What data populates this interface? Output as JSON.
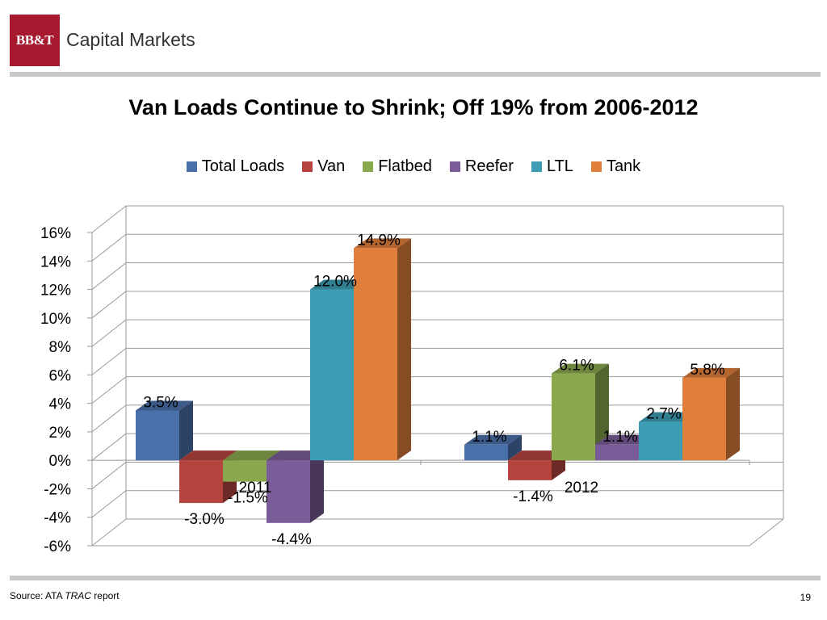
{
  "header": {
    "logo_mark": "BB&T",
    "logo_text": "Capital Markets"
  },
  "footer": {
    "source_prefix": "Source: ATA ",
    "source_italic": "TRAC",
    "source_suffix": " report",
    "page_number": "19"
  },
  "colors": {
    "Total Loads": "#4a70aa",
    "Van": "#b5443f",
    "Flatbed": "#8aa84e",
    "Reefer": "#7a5c98",
    "LTL": "#3d9db5",
    "Tank": "#e07e3b"
  },
  "chart_data": {
    "type": "bar",
    "title": "Van Loads Continue to Shrink; Off 19% from 2006-2012",
    "categories": [
      "2011",
      "2012"
    ],
    "series": [
      {
        "name": "Total Loads",
        "values": [
          3.5,
          1.1
        ],
        "labels": [
          "3.5%",
          "1.1%"
        ]
      },
      {
        "name": "Van",
        "values": [
          -3.0,
          -1.4
        ],
        "labels": [
          "-3.0%",
          "-1.4%"
        ]
      },
      {
        "name": "Flatbed",
        "values": [
          -1.5,
          6.1
        ],
        "labels": [
          "-1.5%",
          "6.1%"
        ]
      },
      {
        "name": "Reefer",
        "values": [
          -4.4,
          1.1
        ],
        "labels": [
          "-4.4%",
          "1.1%"
        ]
      },
      {
        "name": "LTL",
        "values": [
          12.0,
          2.7
        ],
        "labels": [
          "12.0%",
          "2.7%"
        ]
      },
      {
        "name": "Tank",
        "values": [
          14.9,
          5.8
        ],
        "labels": [
          "14.9%",
          "5.8%"
        ]
      }
    ],
    "y_ticks": [
      "-6%",
      "-4%",
      "-2%",
      "0%",
      "2%",
      "4%",
      "6%",
      "8%",
      "10%",
      "12%",
      "14%",
      "16%"
    ],
    "ylim": [
      -6,
      16
    ],
    "legend_position": "top",
    "grid": true
  }
}
